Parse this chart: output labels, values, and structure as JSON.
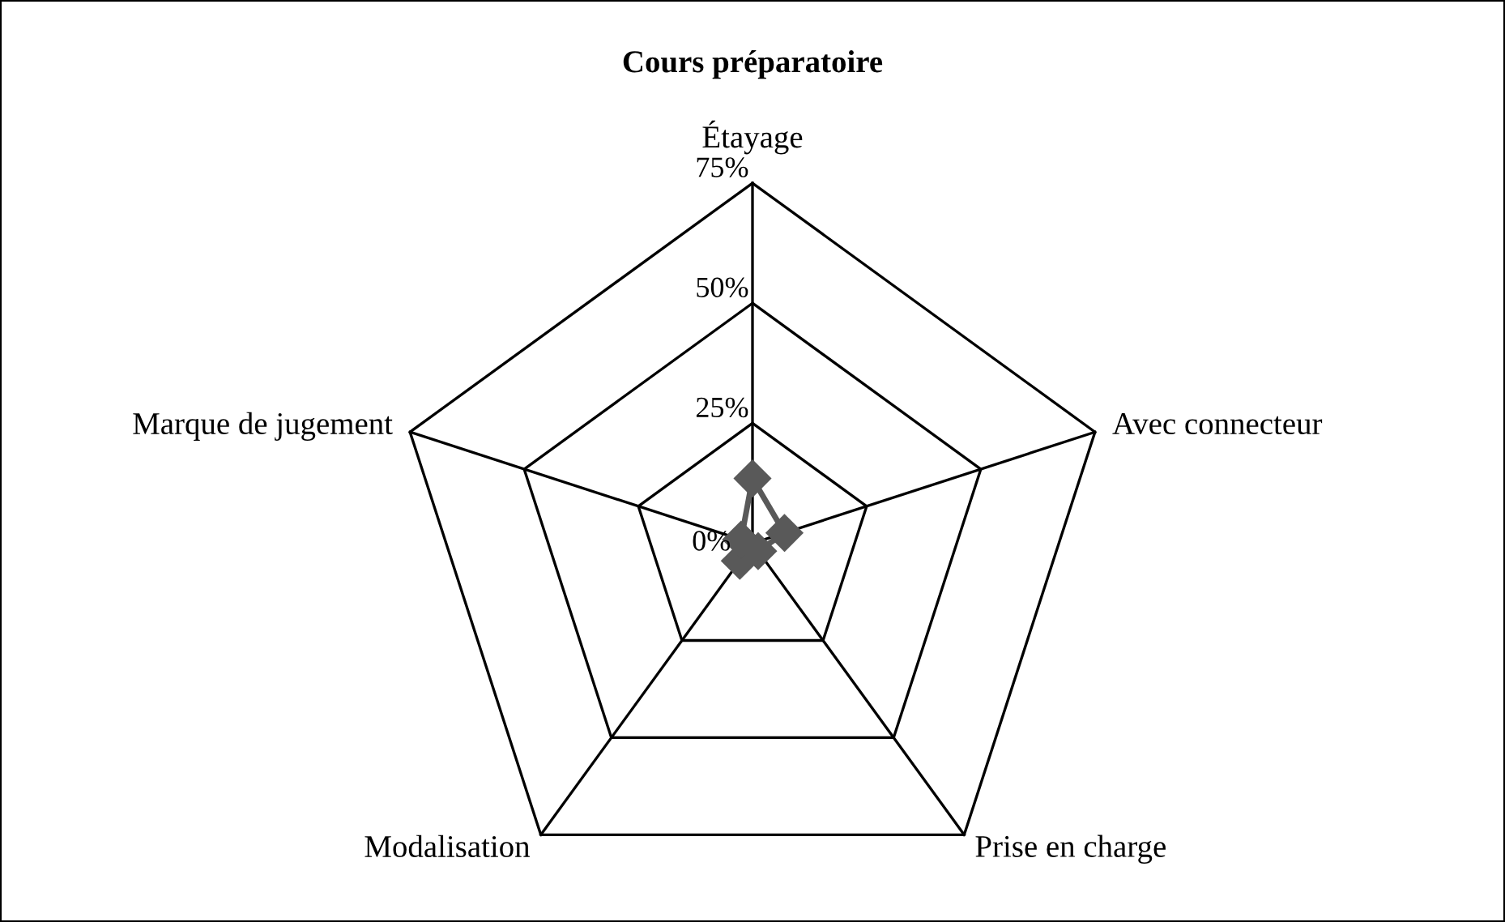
{
  "chart_data": {
    "type": "radar",
    "title": "Cours préparatoire",
    "categories": [
      "Étayage",
      "Avec connecteur",
      "Prise en charge",
      "Modalisation",
      "Marque de jugement"
    ],
    "series": [
      {
        "color": "#595959",
        "values": [
          13.5,
          7,
          2,
          4.5,
          2.5
        ]
      }
    ],
    "ylim": [
      0,
      75
    ],
    "yticks": [
      {
        "value": 0,
        "label": "0%"
      },
      {
        "value": 25,
        "label": "25%"
      },
      {
        "value": 50,
        "label": "50%"
      },
      {
        "value": 75,
        "label": "75%"
      }
    ],
    "marker": "diamond",
    "grid": true,
    "legend": false
  }
}
